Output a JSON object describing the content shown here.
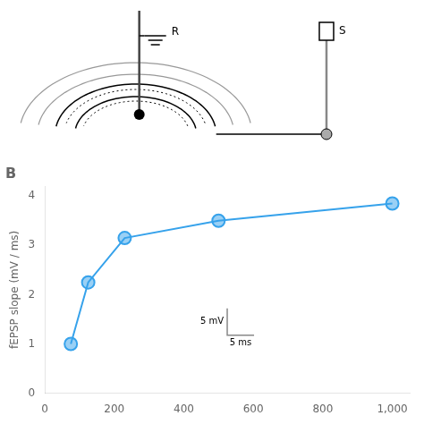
{
  "chart_data": {
    "type": "line",
    "title": "B",
    "y_label": "fEPSP slope (mV / ms)",
    "x": [
      75,
      125,
      230,
      500,
      1000
    ],
    "values": [
      1.0,
      2.25,
      3.15,
      3.5,
      3.85
    ],
    "xlim": [
      0,
      1050
    ],
    "xticks": [
      0,
      200,
      400,
      600,
      800,
      1000
    ],
    "ylim": [
      0,
      4.2
    ],
    "yticks": [
      0,
      1,
      2,
      3,
      4
    ],
    "grid": false,
    "marker": "circle",
    "annotations": [
      "R",
      "S",
      "5 mV",
      "5 ms"
    ]
  }
}
